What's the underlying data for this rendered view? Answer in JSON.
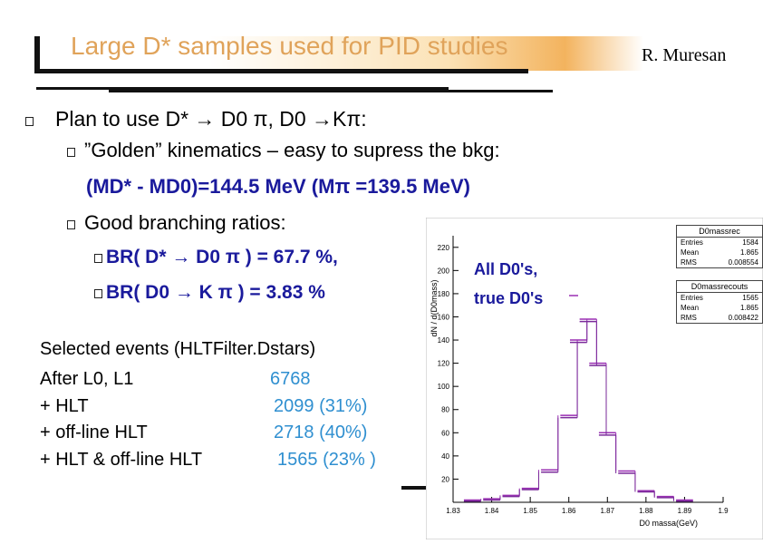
{
  "title": "Large D* samples used for PID studies",
  "author": "R. Muresan",
  "bullets": {
    "plan": "Plan to use D* → D0 π, D0 →Kπ:",
    "golden": "”Golden” kinematics – easy to supress the bkg:",
    "mass": "(MD* - MD0)=144.5 MeV (Mπ =139.5 MeV)",
    "branching": "Good branching ratios:",
    "br1": "BR( D* → D0 π ) = 67.7 %,",
    "br2": "BR( D0 → K π ) = 3.83 %"
  },
  "selected": {
    "header": "Selected events (HLTFilter.Dstars)",
    "rows": [
      {
        "label": "After L0, L1",
        "value": "6768",
        "pct": ""
      },
      {
        "label": "+ HLT",
        "value": "2099",
        "pct": "(31%)"
      },
      {
        "label": "+ off-line HLT",
        "value": "2718",
        "pct": "(40%)"
      },
      {
        "label": "+ HLT & off-line HLT",
        "value": "1565",
        "pct": "(23% )"
      }
    ]
  },
  "histogram": {
    "ylabel": "dN / d(D0mass)",
    "xlabel": "D0 massa(GeV)",
    "annotation_1": "All D0's,",
    "annotation_2": "true D0's",
    "stats": [
      {
        "title": "D0massrec",
        "rows": [
          [
            "Entries",
            "1584"
          ],
          [
            "Mean",
            "1.865"
          ],
          [
            "RMS",
            "0.008554"
          ]
        ]
      },
      {
        "title": "D0massrecouts",
        "rows": [
          [
            "Entries",
            "1565"
          ],
          [
            "Mean",
            "1.865"
          ],
          [
            "RMS",
            "0.008422"
          ]
        ]
      }
    ]
  },
  "chart_data": {
    "type": "line",
    "xlabel": "D0 massa(GeV)",
    "ylabel": "dN / d(D0mass)",
    "xlim": [
      1.83,
      1.9
    ],
    "ylim": [
      0,
      230
    ],
    "xticks": [
      "1.83",
      "1.84",
      "1.85",
      "1.86",
      "1.87",
      "1.88",
      "1.89",
      "1.9"
    ],
    "yticks": [
      "20",
      "40",
      "60",
      "80",
      "100",
      "120",
      "140",
      "160",
      "180",
      "200",
      "220"
    ],
    "series": [
      {
        "name": "D0massrec",
        "x": [
          1.835,
          1.84,
          1.845,
          1.85,
          1.855,
          1.86,
          1.8625,
          1.865,
          1.8675,
          1.87,
          1.875,
          1.88,
          1.885,
          1.89
        ],
        "values": [
          2,
          3,
          6,
          12,
          28,
          75,
          140,
          158,
          120,
          60,
          27,
          10,
          5,
          2
        ]
      },
      {
        "name": "D0massrecouts",
        "x": [
          1.835,
          1.84,
          1.845,
          1.85,
          1.855,
          1.86,
          1.8625,
          1.865,
          1.8675,
          1.87,
          1.875,
          1.88,
          1.885,
          1.89
        ],
        "values": [
          1,
          2,
          5,
          11,
          26,
          73,
          138,
          156,
          118,
          58,
          25,
          9,
          4,
          1
        ]
      }
    ]
  }
}
